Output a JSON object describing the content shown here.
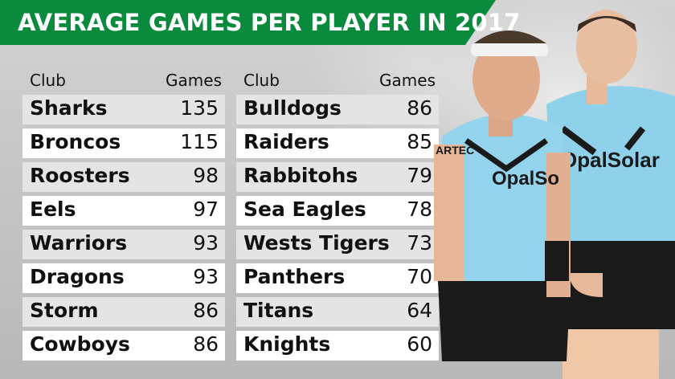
{
  "header": {
    "title": "AVERAGE GAMES PER PLAYER IN 2017"
  },
  "chart_data": {
    "type": "table",
    "title": "AVERAGE GAMES PER PLAYER IN 2017",
    "columns": [
      "Club",
      "Games"
    ],
    "left_table": [
      {
        "club": "Sharks",
        "games": "135"
      },
      {
        "club": "Broncos",
        "games": "115"
      },
      {
        "club": "Roosters",
        "games": "98"
      },
      {
        "club": "Eels",
        "games": "97"
      },
      {
        "club": "Warriors",
        "games": "93"
      },
      {
        "club": "Dragons",
        "games": "93"
      },
      {
        "club": "Storm",
        "games": "86"
      },
      {
        "club": "Cowboys",
        "games": "86"
      }
    ],
    "right_table": [
      {
        "club": "Bulldogs",
        "games": "86"
      },
      {
        "club": "Raiders",
        "games": "85"
      },
      {
        "club": "Rabbitohs",
        "games": "79"
      },
      {
        "club": "Sea Eagles",
        "games": "78"
      },
      {
        "club": "Wests Tigers",
        "games": "73"
      },
      {
        "club": "Panthers",
        "games": "70"
      },
      {
        "club": "Titans",
        "games": "64"
      },
      {
        "club": "Knights",
        "games": "60"
      }
    ]
  },
  "photo": {
    "jersey_text": "OpalSolar",
    "jersey_text_short": "OpalSo",
    "sleeve_text": "ARTEC",
    "colors": {
      "banner": "#0a8a3c",
      "jersey": "#8fd0ea",
      "shorts": "#1a1a1a"
    }
  }
}
